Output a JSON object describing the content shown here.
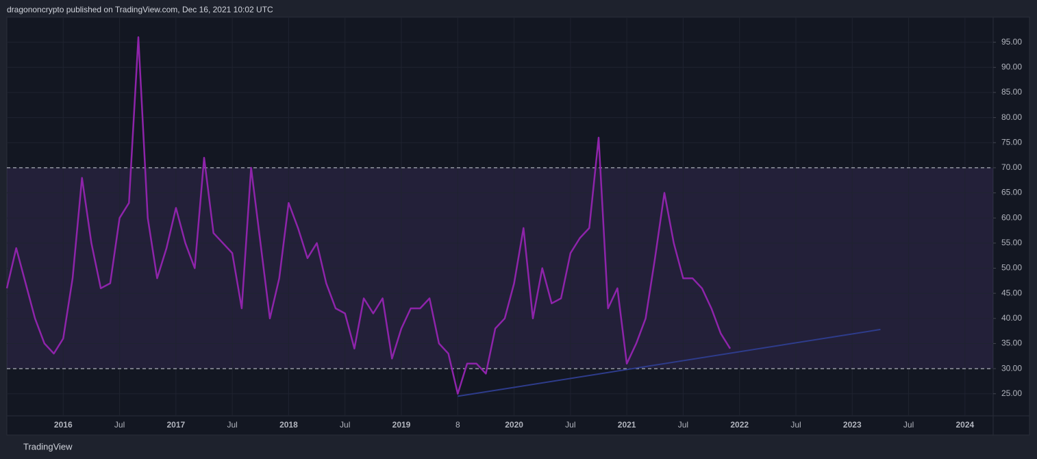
{
  "header": "dragononcrypto published on TradingView.com, Dec 16, 2021 10:02 UTC",
  "footer": "TradingView",
  "chart_data": {
    "type": "line",
    "x": [
      "2015-07",
      "2015-08",
      "2015-09",
      "2015-10",
      "2015-11",
      "2015-12",
      "2016-01",
      "2016-02",
      "2016-03",
      "2016-04",
      "2016-05",
      "2016-06",
      "2016-07",
      "2016-08",
      "2016-09",
      "2016-10",
      "2016-11",
      "2016-12",
      "2017-01",
      "2017-02",
      "2017-03",
      "2017-04",
      "2017-05",
      "2017-06",
      "2017-07",
      "2017-08",
      "2017-09",
      "2017-10",
      "2017-11",
      "2017-12",
      "2018-01",
      "2018-02",
      "2018-03",
      "2018-04",
      "2018-05",
      "2018-06",
      "2018-07",
      "2018-08",
      "2018-09",
      "2018-10",
      "2018-11",
      "2018-12",
      "2019-01",
      "2019-02",
      "2019-03",
      "2019-04",
      "2019-05",
      "2019-06",
      "2019-07",
      "2019-08",
      "2019-09",
      "2019-10",
      "2019-11",
      "2019-12",
      "2020-01",
      "2020-02",
      "2020-03",
      "2020-04",
      "2020-05",
      "2020-06",
      "2020-07",
      "2020-08",
      "2020-09",
      "2020-10",
      "2020-11",
      "2020-12",
      "2021-01",
      "2021-02",
      "2021-03",
      "2021-04",
      "2021-05",
      "2021-06",
      "2021-07",
      "2021-08",
      "2021-09",
      "2021-10",
      "2021-11",
      "2021-12"
    ],
    "series": [
      {
        "color": "#8e24aa",
        "values": [
          46,
          54,
          47,
          40,
          35,
          33,
          36,
          48,
          68,
          55,
          46,
          47,
          60,
          63,
          96,
          60,
          48,
          54,
          62,
          55,
          50,
          72,
          57,
          55,
          53,
          42,
          70,
          55,
          40,
          48,
          63,
          58,
          52,
          55,
          47,
          42,
          41,
          34,
          44,
          41,
          44,
          32,
          38,
          42,
          42,
          44,
          35,
          33,
          25,
          31,
          31,
          29,
          38,
          40,
          47,
          58,
          40,
          50,
          43,
          44,
          53,
          56,
          58,
          76,
          42,
          46,
          31,
          35,
          40,
          52,
          65,
          55,
          48,
          48,
          46,
          42,
          37,
          34
        ]
      }
    ],
    "trendline": {
      "x": [
        "2019-07",
        "2023-04"
      ],
      "values": [
        24.5,
        37.8
      ],
      "color": "#2e3c8c"
    },
    "bands": {
      "upper": 70,
      "lower": 30,
      "color": "#7e57c2"
    },
    "xlim": [
      "2015-07",
      "2024-04"
    ],
    "xticks": [
      {
        "value": "2016-01",
        "label": "2016"
      },
      {
        "value": "2016-07",
        "label": "Jul"
      },
      {
        "value": "2017-01",
        "label": "2017"
      },
      {
        "value": "2017-07",
        "label": "Jul"
      },
      {
        "value": "2018-01",
        "label": "2018"
      },
      {
        "value": "2018-07",
        "label": "Jul"
      },
      {
        "value": "2019-01",
        "label": "2019"
      },
      {
        "value": "2019-07",
        "label": "8"
      },
      {
        "value": "2020-01",
        "label": "2020"
      },
      {
        "value": "2020-07",
        "label": "Jul"
      },
      {
        "value": "2021-01",
        "label": "2021"
      },
      {
        "value": "2021-07",
        "label": "Jul"
      },
      {
        "value": "2022-01",
        "label": "2022"
      },
      {
        "value": "2022-07",
        "label": "Jul"
      },
      {
        "value": "2023-01",
        "label": "2023"
      },
      {
        "value": "2023-07",
        "label": "Jul"
      },
      {
        "value": "2024-01",
        "label": "2024"
      }
    ],
    "ylim": [
      20.6,
      100
    ],
    "yticks": [
      {
        "value": 25,
        "label": "25.00"
      },
      {
        "value": 30,
        "label": "30.00"
      },
      {
        "value": 35,
        "label": "35.00"
      },
      {
        "value": 40,
        "label": "40.00"
      },
      {
        "value": 45,
        "label": "45.00"
      },
      {
        "value": 50,
        "label": "50.00"
      },
      {
        "value": 55,
        "label": "55.00"
      },
      {
        "value": 60,
        "label": "60.00"
      },
      {
        "value": 65,
        "label": "65.00"
      },
      {
        "value": 70,
        "label": "70.00"
      },
      {
        "value": 75,
        "label": "75.00"
      },
      {
        "value": 80,
        "label": "80.00"
      },
      {
        "value": 85,
        "label": "85.00"
      },
      {
        "value": 90,
        "label": "90.00"
      },
      {
        "value": 95,
        "label": "95.00"
      }
    ],
    "grid": true
  }
}
